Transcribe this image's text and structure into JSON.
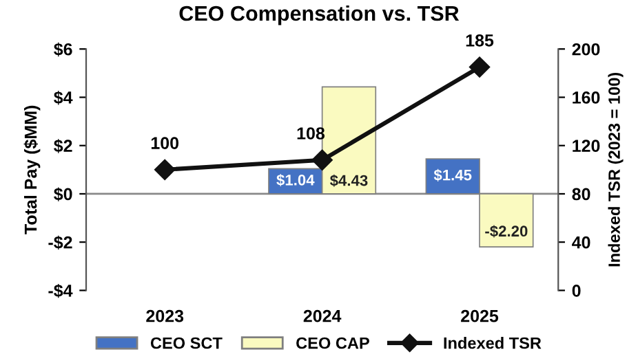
{
  "chart_data": {
    "type": "bar",
    "title": "CEO Compensation vs. TSR",
    "ylabel": "Total Pay ($MM)",
    "y2label": "Indexed TSR (2023 = 100)",
    "categories": [
      "2023",
      "2024",
      "2025"
    ],
    "series": [
      {
        "name": "CEO SCT",
        "color": "#4472c4",
        "values": [
          null,
          1.04,
          1.45
        ],
        "value_labels": [
          null,
          "$1.04",
          "$1.45"
        ]
      },
      {
        "name": "CEO CAP",
        "color": "#fafac0",
        "values": [
          null,
          4.43,
          -2.2
        ],
        "value_labels": [
          null,
          "$4.43",
          "-$2.20"
        ]
      },
      {
        "name": "Indexed TSR",
        "type": "line",
        "axis": "y2",
        "color": "#111111",
        "marker": "diamond",
        "values": [
          100,
          108,
          185
        ],
        "value_labels": [
          "100",
          "108",
          "185"
        ]
      }
    ],
    "ylim": [
      -4,
      6
    ],
    "yticks": [
      {
        "value": -4,
        "label": "-$4"
      },
      {
        "value": -2,
        "label": "-$2"
      },
      {
        "value": 0,
        "label": "$0"
      },
      {
        "value": 2,
        "label": "$2"
      },
      {
        "value": 4,
        "label": "$4"
      },
      {
        "value": 6,
        "label": "$6"
      }
    ],
    "y2lim": [
      0,
      200
    ],
    "y2ticks": [
      0,
      40,
      80,
      120,
      160,
      200
    ],
    "ref_lines": [
      {
        "axis": "y",
        "value": 0,
        "color": "#888888"
      }
    ],
    "legend": "bottom"
  }
}
